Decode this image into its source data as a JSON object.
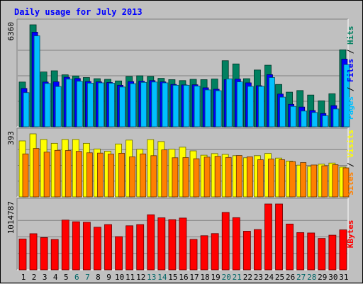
{
  "chart_data": {
    "type": "bar",
    "title": "Daily usage for July 2013",
    "categories": [
      "1",
      "2",
      "3",
      "4",
      "5",
      "6",
      "7",
      "8",
      "9",
      "10",
      "11",
      "12",
      "13",
      "14",
      "15",
      "16",
      "17",
      "18",
      "19",
      "20",
      "21",
      "22",
      "23",
      "24",
      "25",
      "26",
      "27",
      "28",
      "29",
      "30",
      "31"
    ],
    "weekend_days": [
      6,
      7,
      13,
      14,
      20,
      21,
      27,
      28
    ],
    "weekday_label_color": "#000000",
    "weekend_label_color": "#006666",
    "panels": [
      {
        "id": "hits",
        "max_label": "6360",
        "ylim": [
          0,
          6360
        ],
        "legend": [
          {
            "text": "Pages",
            "color": "#00c0ff"
          },
          {
            "text": " / ",
            "color": "#000000"
          },
          {
            "text": "Files",
            "color": "#0000ff"
          },
          {
            "text": " / ",
            "color": "#000000"
          },
          {
            "text": "Hits",
            "color": "#008060"
          }
        ],
        "series": [
          {
            "name": "Hits",
            "color": "#008060",
            "values": [
              2790,
              6360,
              3420,
              3490,
              3240,
              3170,
              3070,
              3000,
              2960,
              2860,
              3140,
              3180,
              3140,
              3020,
              2940,
              2880,
              2960,
              2940,
              2980,
              4120,
              3920,
              3000,
              3540,
              3840,
              2640,
              2160,
              2260,
              1980,
              1620,
              2060,
              4800
            ]
          },
          {
            "name": "Files",
            "color": "#0000ff",
            "values": [
              2390,
              5900,
              2790,
              2800,
              3090,
              3010,
              2820,
              2800,
              2760,
              2590,
              2820,
              2840,
              2880,
              2800,
              2640,
              2610,
              2620,
              2430,
              2340,
              2940,
              2970,
              2740,
              2560,
              3250,
              2040,
              1400,
              1230,
              1010,
              830,
              1320,
              4220
            ]
          },
          {
            "name": "Pages",
            "color": "#00c0ff",
            "values": [
              2130,
              5670,
              2700,
              2510,
              2970,
              2840,
              2720,
              2740,
              2720,
              2480,
              2690,
              2770,
              2790,
              2740,
              2590,
              2590,
              2540,
              2300,
              2250,
              2990,
              2800,
              2520,
              2520,
              3070,
              1850,
              1270,
              980,
              890,
              690,
              1110,
              3880
            ]
          }
        ]
      },
      {
        "id": "visits",
        "max_label": "393",
        "ylim": [
          0,
          393
        ],
        "legend": [
          {
            "text": "Sites",
            "color": "#ff8000"
          },
          {
            "text": " / ",
            "color": "#000000"
          },
          {
            "text": "Visits",
            "color": "#ffff00"
          }
        ],
        "series": [
          {
            "name": "Visits",
            "color": "#ffff00",
            "values": [
              349,
              393,
              358,
              334,
              358,
              358,
              334,
              299,
              285,
              330,
              354,
              297,
              357,
              345,
              297,
              310,
              287,
              260,
              270,
              265,
              257,
              244,
              257,
              271,
              242,
              223,
              198,
              190,
              204,
              211,
              186
            ]
          },
          {
            "name": "Sites",
            "color": "#ff8000",
            "values": [
              268,
              302,
              279,
              290,
              289,
              284,
              275,
              273,
              267,
              272,
              250,
              268,
              257,
              293,
              244,
              245,
              238,
              248,
              253,
              246,
              258,
              250,
              232,
              236,
              232,
              220,
              214,
              199,
              194,
              201,
              181
            ]
          }
        ]
      },
      {
        "id": "kbytes",
        "max_label": "1014787",
        "ylim": [
          0,
          1014787
        ],
        "legend": [
          {
            "text": "KBytes",
            "color": "#ff0000"
          }
        ],
        "series": [
          {
            "name": "KBytes",
            "color": "#ff0000",
            "values": [
              475000,
              557000,
              497000,
              468000,
              767000,
              741000,
              734000,
              657000,
              698000,
              512000,
              679000,
              698000,
              849000,
              802000,
              774000,
              798000,
              469000,
              526000,
              559000,
              885000,
              804000,
              595000,
              621000,
              1014787,
              1014787,
              706000,
              574000,
              568000,
              484000,
              534000,
              616000
            ]
          }
        ]
      }
    ]
  }
}
